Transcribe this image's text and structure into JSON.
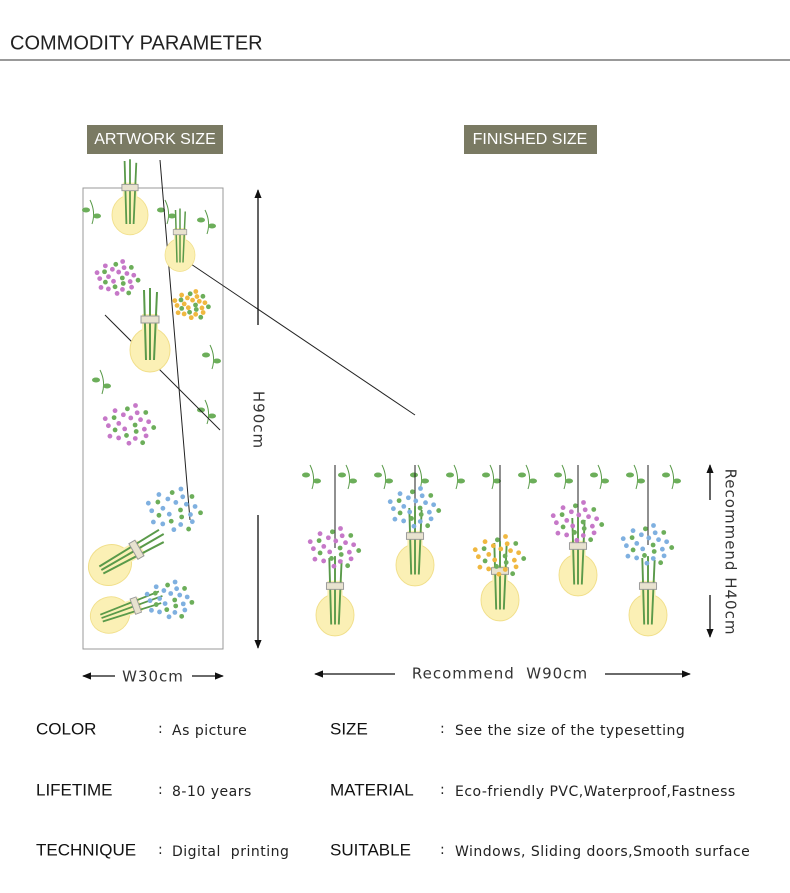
{
  "header": {
    "title": "COMMODITY PARAMETER"
  },
  "artwork": {
    "label": "ARTWORK SIZE",
    "height": "H90cm",
    "width": "W30cm"
  },
  "finished": {
    "label": "FINISHED SIZE",
    "width": "Recommend  W90cm",
    "height": "Recommend H40cm"
  },
  "separator": ":",
  "parameters": [
    {
      "label": "COLOR",
      "value": "As picture"
    },
    {
      "label": "LIFETIME",
      "value": "8-10 years"
    },
    {
      "label": "TECHNIQUE",
      "value": "Digital  printing"
    },
    {
      "label": "SIZE",
      "value": "See the size of the typesetting"
    },
    {
      "label": "MATERIAL",
      "value": "Eco-friendly PVC,Waterproof,Fastness"
    },
    {
      "label": "SUITABLE",
      "value": "Windows, Sliding doors,Smooth surface"
    }
  ]
}
